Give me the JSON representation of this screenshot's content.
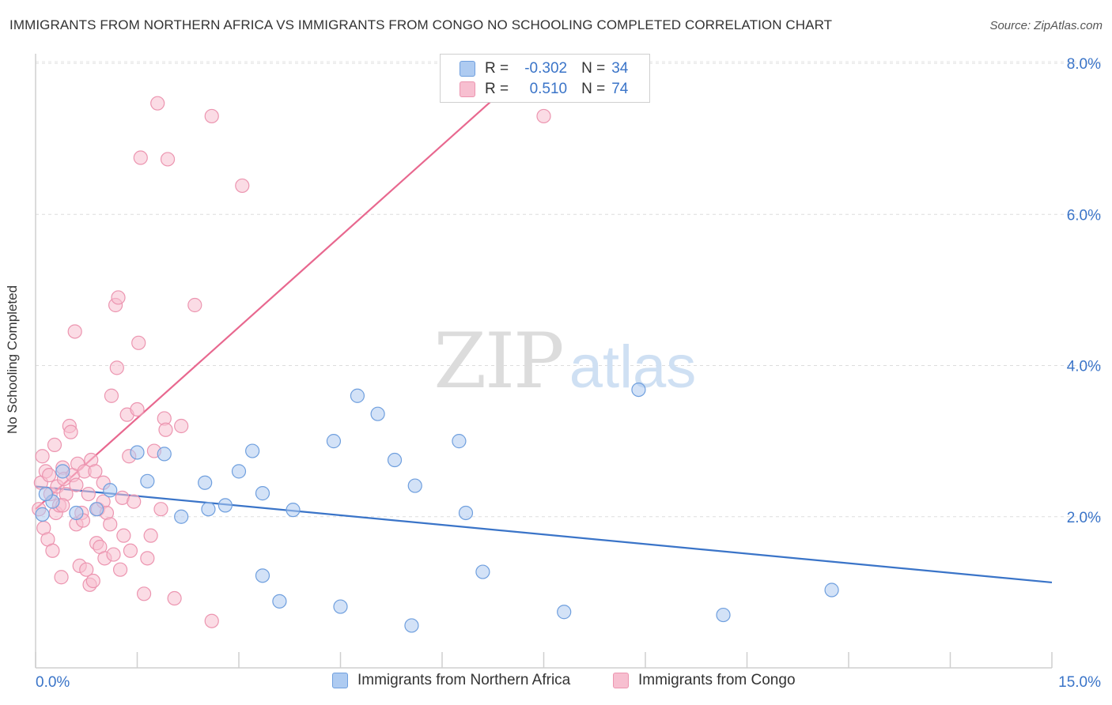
{
  "title": "IMMIGRANTS FROM NORTHERN AFRICA VS IMMIGRANTS FROM CONGO NO SCHOOLING COMPLETED CORRELATION CHART",
  "source": "Source: ZipAtlas.com",
  "watermark": {
    "zip": "ZIP",
    "atlas": "atlas"
  },
  "colors": {
    "blue": "#3a74c8",
    "blue_fill": "#aecbf1",
    "blue_stroke": "#6f9fde",
    "pink": "#e8688f",
    "pink_fill": "#f7bfd0",
    "pink_stroke": "#ec95b0",
    "axis_text": "#3a74c8"
  },
  "legend": {
    "rows": [
      {
        "r_label": "R =",
        "r_value": "-0.302",
        "n_label": "N =",
        "n_value": "34"
      },
      {
        "r_label": "R =",
        "r_value": "0.510",
        "n_label": "N =",
        "n_value": "74"
      }
    ]
  },
  "chart_data": {
    "type": "scatter",
    "title": "IMMIGRANTS FROM NORTHERN AFRICA VS IMMIGRANTS FROM CONGO NO SCHOOLING COMPLETED CORRELATION CHART",
    "xlabel": "",
    "ylabel": "No Schooling Completed",
    "xlim": [
      0,
      15
    ],
    "ylim": [
      0,
      8
    ],
    "x_tick_labels": [
      "0.0%",
      "15.0%"
    ],
    "y_tick_labels": [
      "2.0%",
      "4.0%",
      "6.0%",
      "8.0%"
    ],
    "y_ticks": [
      2,
      4,
      6,
      8
    ],
    "grid": true,
    "legend_position": "top-center",
    "series": [
      {
        "name": "Immigrants from Northern Africa",
        "color": "#3a74c8",
        "trend": {
          "x": [
            0,
            15
          ],
          "y": [
            2.4,
            1.13
          ]
        },
        "points": [
          [
            0.1,
            2.03
          ],
          [
            0.25,
            2.2
          ],
          [
            0.4,
            2.6
          ],
          [
            0.6,
            2.05
          ],
          [
            0.9,
            2.1
          ],
          [
            1.1,
            2.35
          ],
          [
            1.5,
            2.85
          ],
          [
            1.65,
            2.47
          ],
          [
            1.9,
            2.83
          ],
          [
            2.15,
            2.0
          ],
          [
            2.5,
            2.45
          ],
          [
            2.55,
            2.1
          ],
          [
            2.8,
            2.15
          ],
          [
            3.0,
            2.6
          ],
          [
            3.2,
            2.87
          ],
          [
            3.35,
            1.22
          ],
          [
            3.35,
            2.31
          ],
          [
            3.6,
            0.88
          ],
          [
            3.8,
            2.09
          ],
          [
            4.4,
            3.0
          ],
          [
            4.5,
            0.81
          ],
          [
            4.75,
            3.6
          ],
          [
            5.05,
            3.36
          ],
          [
            5.3,
            2.75
          ],
          [
            5.55,
            0.56
          ],
          [
            5.6,
            2.41
          ],
          [
            6.25,
            3.0
          ],
          [
            6.35,
            2.05
          ],
          [
            6.6,
            1.27
          ],
          [
            7.8,
            0.74
          ],
          [
            8.9,
            3.68
          ],
          [
            10.15,
            0.7
          ],
          [
            11.75,
            1.03
          ],
          [
            0.15,
            2.3
          ]
        ]
      },
      {
        "name": "Immigrants from Congo",
        "color": "#e8688f",
        "trend": {
          "x": [
            0,
            7.35
          ],
          "y": [
            2.1,
            8.0
          ]
        },
        "points": [
          [
            0.05,
            2.1
          ],
          [
            0.08,
            2.45
          ],
          [
            0.1,
            2.8
          ],
          [
            0.12,
            1.85
          ],
          [
            0.15,
            2.6
          ],
          [
            0.18,
            1.7
          ],
          [
            0.2,
            2.55
          ],
          [
            0.22,
            2.3
          ],
          [
            0.25,
            1.55
          ],
          [
            0.28,
            2.95
          ],
          [
            0.3,
            2.05
          ],
          [
            0.32,
            2.4
          ],
          [
            0.35,
            2.15
          ],
          [
            0.38,
            1.2
          ],
          [
            0.4,
            2.65
          ],
          [
            0.42,
            2.5
          ],
          [
            0.45,
            2.3
          ],
          [
            0.5,
            3.2
          ],
          [
            0.52,
            3.12
          ],
          [
            0.55,
            2.55
          ],
          [
            0.58,
            4.45
          ],
          [
            0.6,
            1.9
          ],
          [
            0.62,
            2.7
          ],
          [
            0.65,
            1.35
          ],
          [
            0.68,
            2.05
          ],
          [
            0.7,
            1.95
          ],
          [
            0.72,
            2.6
          ],
          [
            0.75,
            1.3
          ],
          [
            0.78,
            2.3
          ],
          [
            0.8,
            1.1
          ],
          [
            0.82,
            2.75
          ],
          [
            0.85,
            1.15
          ],
          [
            0.88,
            2.6
          ],
          [
            0.9,
            1.65
          ],
          [
            0.92,
            2.1
          ],
          [
            0.95,
            1.6
          ],
          [
            1.0,
            2.2
          ],
          [
            1.02,
            1.45
          ],
          [
            1.05,
            2.05
          ],
          [
            1.1,
            1.9
          ],
          [
            1.12,
            3.6
          ],
          [
            1.15,
            1.5
          ],
          [
            1.18,
            4.8
          ],
          [
            1.2,
            3.97
          ],
          [
            1.22,
            4.9
          ],
          [
            1.25,
            1.3
          ],
          [
            1.28,
            2.25
          ],
          [
            1.3,
            1.75
          ],
          [
            1.35,
            3.35
          ],
          [
            1.38,
            2.8
          ],
          [
            1.4,
            1.55
          ],
          [
            1.45,
            2.2
          ],
          [
            1.5,
            3.42
          ],
          [
            1.52,
            4.3
          ],
          [
            1.55,
            6.75
          ],
          [
            1.6,
            0.98
          ],
          [
            1.65,
            1.45
          ],
          [
            1.7,
            1.75
          ],
          [
            1.75,
            2.87
          ],
          [
            1.8,
            7.47
          ],
          [
            1.85,
            2.1
          ],
          [
            1.9,
            3.3
          ],
          [
            1.92,
            3.15
          ],
          [
            1.95,
            6.73
          ],
          [
            2.05,
            0.92
          ],
          [
            2.35,
            4.8
          ],
          [
            2.15,
            3.2
          ],
          [
            2.6,
            0.62
          ],
          [
            2.6,
            7.3
          ],
          [
            3.05,
            6.38
          ],
          [
            7.5,
            7.3
          ],
          [
            0.4,
            2.15
          ],
          [
            0.6,
            2.42
          ],
          [
            1.0,
            2.45
          ]
        ]
      }
    ]
  },
  "legend_bottom": [
    {
      "label": "Immigrants from Northern Africa"
    },
    {
      "label": "Immigrants from Congo"
    }
  ]
}
